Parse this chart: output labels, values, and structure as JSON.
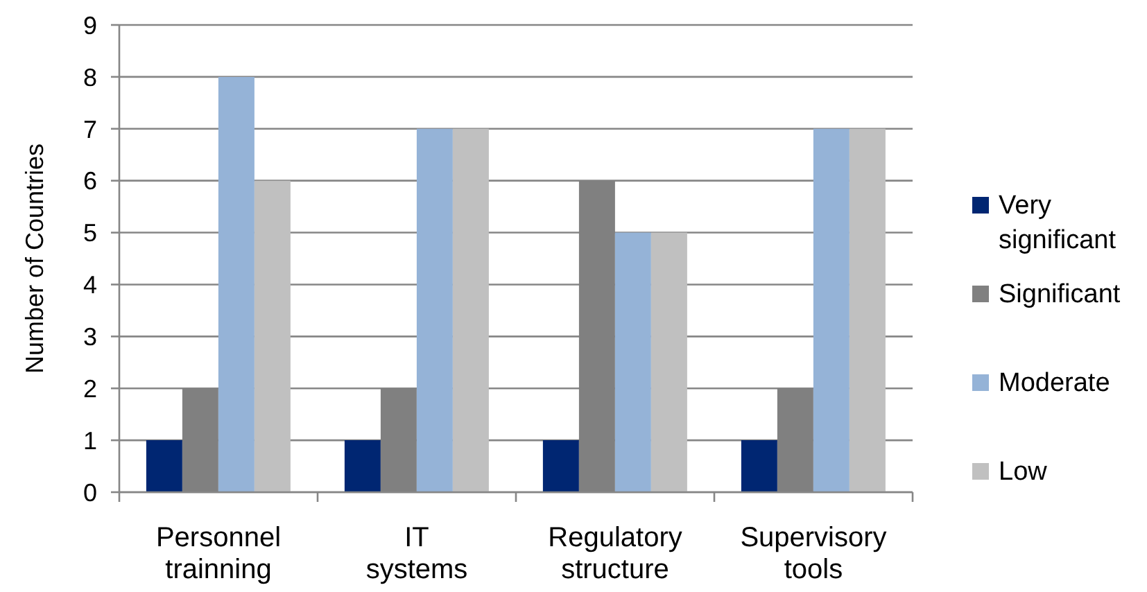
{
  "chart_data": {
    "type": "bar",
    "ylabel": "Number of Countries",
    "categories": [
      "Personnel trainning",
      "IT systems",
      "Regulatory structure",
      "Supervisory tools"
    ],
    "series": [
      {
        "name": "Very significant",
        "color": "#002672",
        "values": [
          1,
          1,
          1,
          1
        ]
      },
      {
        "name": "Significant",
        "color": "#808080",
        "values": [
          2,
          2,
          6,
          2
        ]
      },
      {
        "name": "Moderate",
        "color": "#95b3d7",
        "values": [
          8,
          7,
          5,
          7
        ]
      },
      {
        "name": "Low",
        "color": "#c0c0c0",
        "values": [
          6,
          7,
          5,
          7
        ]
      }
    ],
    "ylim": [
      0,
      9
    ],
    "yticks": [
      0,
      1,
      2,
      3,
      4,
      5,
      6,
      7,
      8,
      9
    ],
    "grid": "y",
    "legend": "right"
  }
}
